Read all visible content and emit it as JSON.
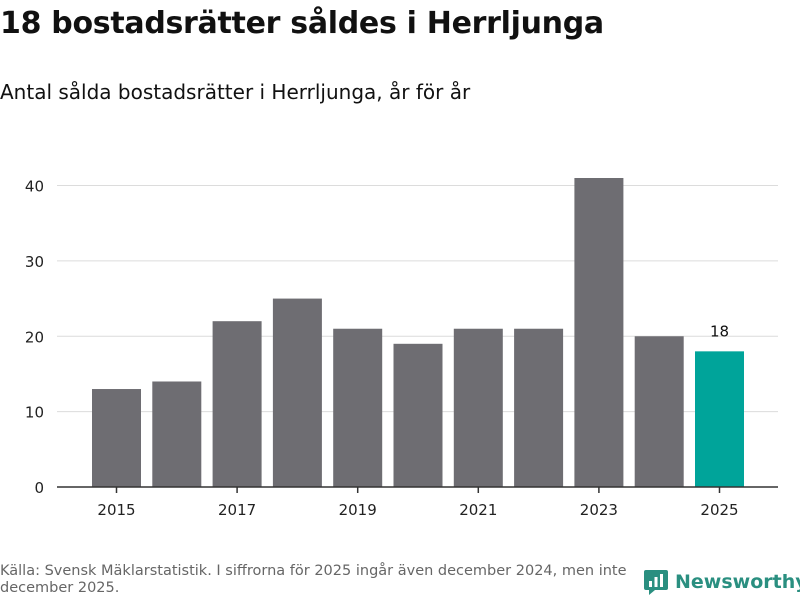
{
  "title": "18 bostadsrätter såldes i Herrljunga",
  "subtitle": "Antal sålda bostadsrätter i Herrljunga, år för år",
  "source": "Källa: Svensk Mäklarstatistik. I siffrorna för 2025 ingår även december 2024, men inte december 2025.",
  "brand": "Newsworthy",
  "colors": {
    "bar": "#6e6d72",
    "highlight": "#00a49a",
    "grid": "#dcdcdc",
    "axis": "#333333",
    "brand": "#2a8f80"
  },
  "chart_data": {
    "type": "bar",
    "title": "18 bostadsrätter såldes i Herrljunga",
    "subtitle": "Antal sålda bostadsrätter i Herrljunga, år för år",
    "categories": [
      "2015",
      "2016",
      "2017",
      "2018",
      "2019",
      "2020",
      "2021",
      "2022",
      "2023",
      "2024",
      "2025"
    ],
    "values": [
      13,
      14,
      22,
      25,
      21,
      19,
      21,
      21,
      41,
      20,
      18
    ],
    "x_tick_labels": [
      "2015",
      "2017",
      "2019",
      "2021",
      "2023",
      "2025"
    ],
    "y_ticks": [
      0,
      10,
      20,
      30,
      40
    ],
    "ylim": [
      0,
      41
    ],
    "highlight_category": "2025",
    "data_labels": [
      {
        "category": "2025",
        "text": "18"
      }
    ],
    "xlabel": "",
    "ylabel": "",
    "grid": true,
    "legend": "none"
  }
}
